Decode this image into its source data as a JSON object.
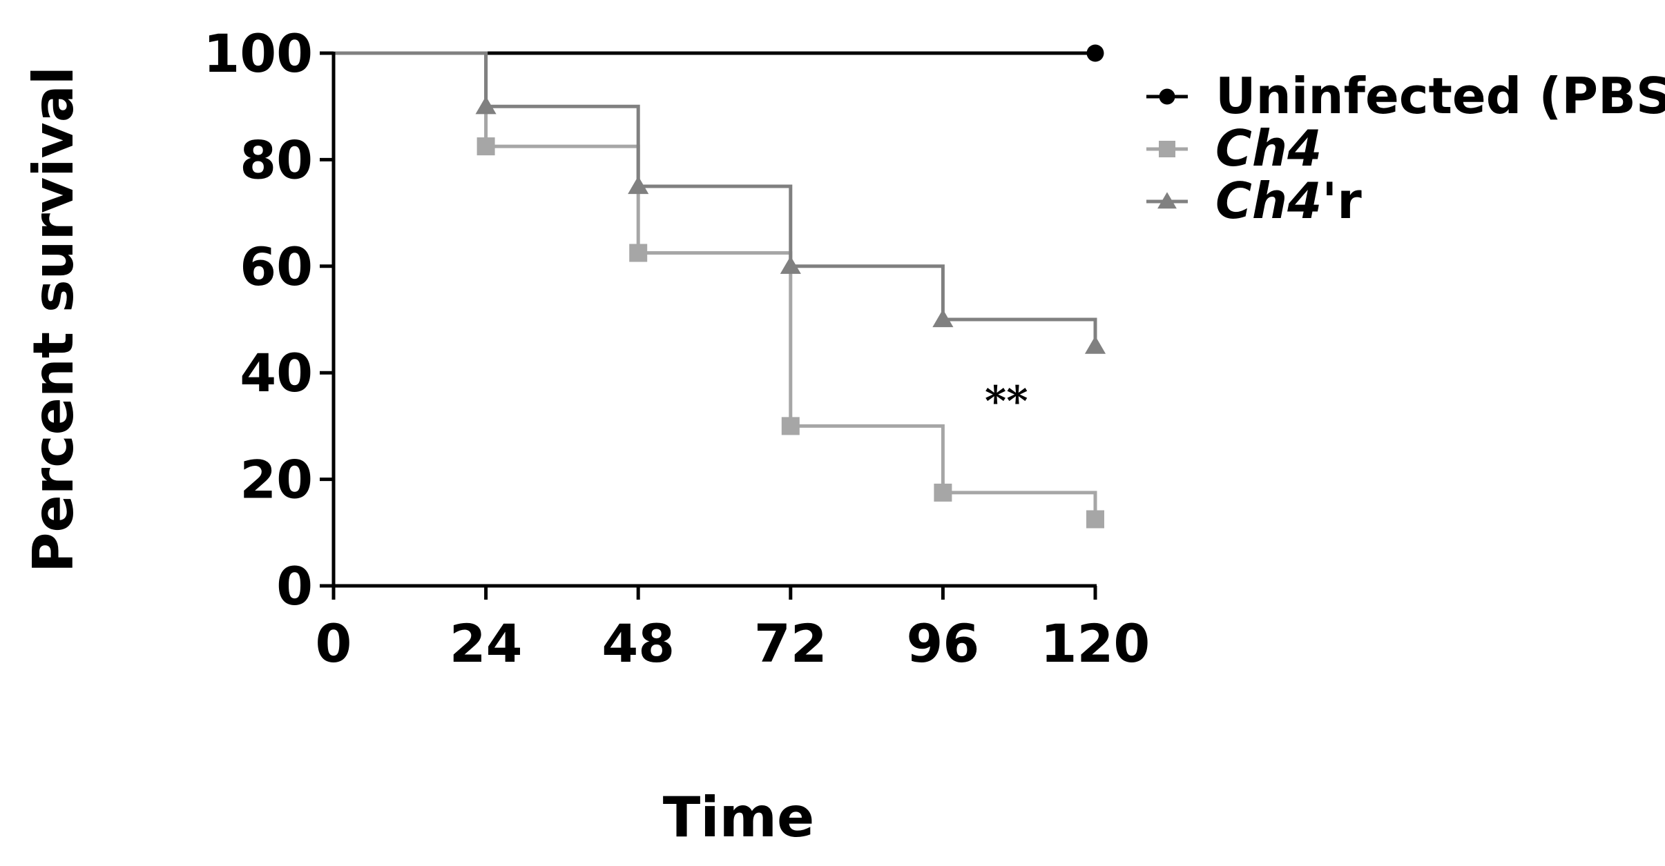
{
  "chart_data": {
    "type": "line",
    "step": true,
    "xlabel": "Time",
    "ylabel": "Percent survival",
    "xlim": [
      0,
      120
    ],
    "ylim": [
      0,
      100
    ],
    "xticks": [
      0,
      24,
      48,
      72,
      96,
      120
    ],
    "yticks": [
      0,
      20,
      40,
      60,
      80,
      100
    ],
    "grid": false,
    "legend_position": "right",
    "annotations": [
      {
        "text": "**",
        "x": 106,
        "y": 32
      }
    ],
    "series": [
      {
        "name": "Uninfected (PBS)",
        "name_parts": [
          {
            "text": "Uninfected (PBS)",
            "italic": false
          }
        ],
        "color": "#000000",
        "marker": "circle",
        "x": [
          0,
          120
        ],
        "y": [
          100,
          100
        ],
        "markers_x": [
          120
        ],
        "markers_y": [
          100
        ]
      },
      {
        "name": "Ch4",
        "name_parts": [
          {
            "text": "Ch4",
            "italic": true
          }
        ],
        "color": "#a6a6a6",
        "marker": "square",
        "x": [
          0,
          24,
          48,
          72,
          96,
          120
        ],
        "y": [
          100,
          82.5,
          62.5,
          30,
          17.5,
          12.5
        ],
        "markers_x": [
          24,
          48,
          72,
          96,
          120
        ],
        "markers_y": [
          82.5,
          62.5,
          30,
          17.5,
          12.5
        ]
      },
      {
        "name": "Ch4'r",
        "name_parts": [
          {
            "text": "Ch4",
            "italic": true
          },
          {
            "text": "'r",
            "italic": false
          }
        ],
        "color": "#808080",
        "marker": "triangle",
        "x": [
          0,
          24,
          48,
          72,
          96,
          120
        ],
        "y": [
          100,
          90,
          75,
          60,
          50,
          45
        ],
        "markers_x": [
          24,
          48,
          72,
          96,
          120
        ],
        "markers_y": [
          90,
          75,
          60,
          50,
          45
        ]
      }
    ]
  }
}
